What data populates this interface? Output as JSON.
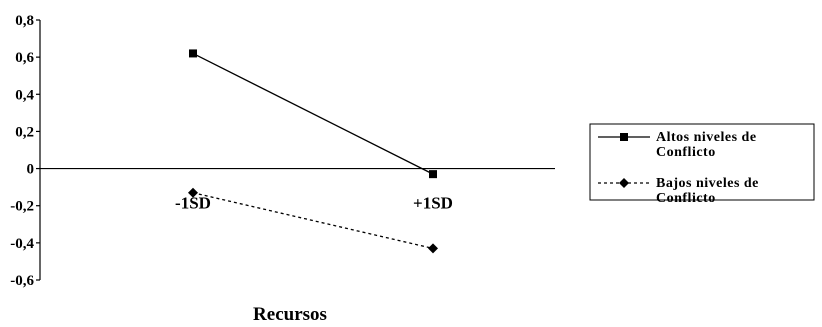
{
  "chart_data": {
    "type": "line",
    "title": "",
    "xlabel": "Recursos",
    "ylabel": "",
    "categories": [
      "-1SD",
      "+1SD"
    ],
    "ylim": [
      -0.6,
      0.8
    ],
    "yticks": [
      "0,8",
      "0,6",
      "0,4",
      "0,2",
      "0",
      "-0,2",
      "-0,4",
      "-0,6"
    ],
    "ytick_values": [
      0.8,
      0.6,
      0.4,
      0.2,
      0,
      -0.2,
      -0.4,
      -0.6
    ],
    "grid": false,
    "legend_position": "right",
    "series": [
      {
        "name_lines": [
          "Altos niveles de",
          "Conflicto"
        ],
        "values": [
          0.62,
          -0.03
        ],
        "marker": "square",
        "line_style": "solid",
        "color": "#000000"
      },
      {
        "name_lines": [
          "Bajos niveles de",
          "Conflicto"
        ],
        "values": [
          -0.13,
          -0.43
        ],
        "marker": "diamond",
        "line_style": "dotted",
        "color": "#000000"
      }
    ]
  }
}
